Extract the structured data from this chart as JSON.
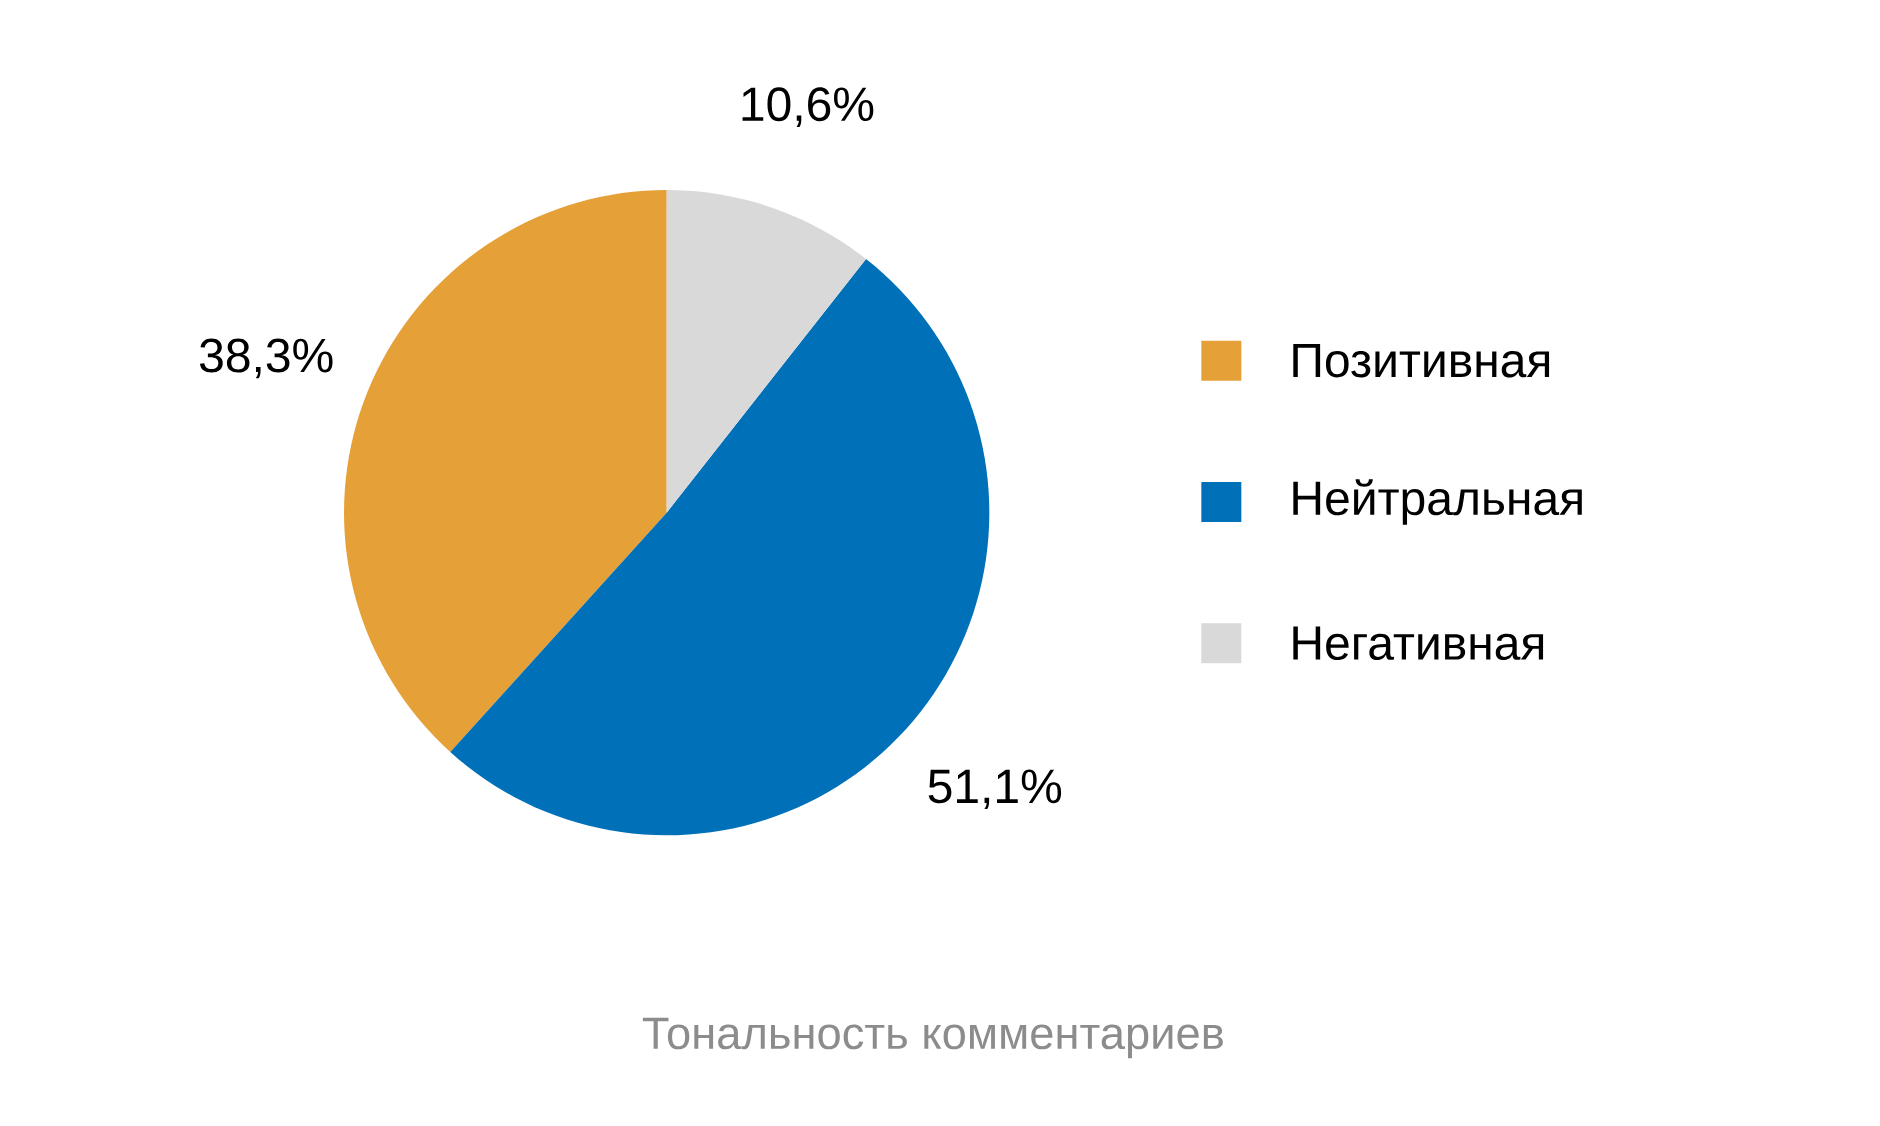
{
  "chart_data": {
    "type": "pie",
    "title": "Тональность комментариев",
    "categories": [
      "Позитивная",
      "Нейтральная",
      "Негативная"
    ],
    "values": [
      38.3,
      51.1,
      10.6
    ],
    "colors": [
      "#e5a038",
      "#0070b8",
      "#d9d9d9"
    ],
    "value_labels": [
      "38,3%",
      "51,1%",
      "10,6%"
    ],
    "legend": "right"
  }
}
